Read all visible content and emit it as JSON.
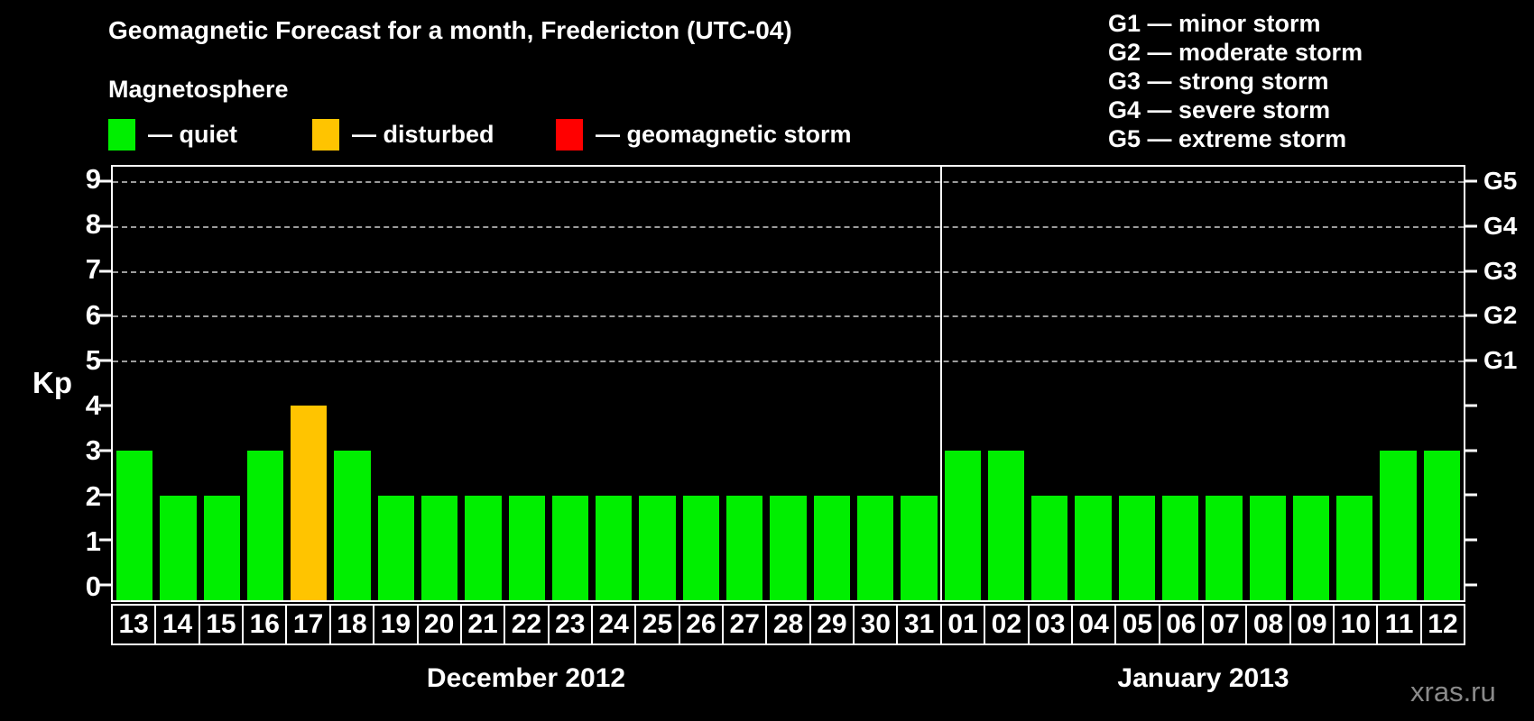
{
  "page": {
    "title": "Geomagnetic Forecast for a month, Fredericton (UTC-04)",
    "watermark": "xras.ru"
  },
  "legend": {
    "heading": "Magnetosphere",
    "items": [
      {
        "key": "quiet",
        "label": "— quiet",
        "color": "#00ef00"
      },
      {
        "key": "disturbed",
        "label": "— disturbed",
        "color": "#ffc400"
      },
      {
        "key": "storm",
        "label": "— geomagnetic storm",
        "color": "#ff0000"
      }
    ]
  },
  "g_legend": [
    "G1 — minor storm",
    "G2 — moderate storm",
    "G3 — strong storm",
    "G4 — severe storm",
    "G5 — extreme storm"
  ],
  "chart_data": {
    "type": "bar",
    "title": "Geomagnetic Forecast for a month, Fredericton (UTC-04)",
    "xlabel": "",
    "ylabel": "Kp",
    "ylim": [
      0,
      9
    ],
    "yticks": [
      0,
      1,
      2,
      3,
      4,
      5,
      6,
      7,
      8,
      9
    ],
    "gridlines_at": [
      5,
      6,
      7,
      8,
      9
    ],
    "grid": "dashed horizontal at storm levels only",
    "legend_position": "top-left",
    "right_axis_labels": [
      {
        "label": "G1",
        "kp": 5
      },
      {
        "label": "G2",
        "kp": 6
      },
      {
        "label": "G3",
        "kp": 7
      },
      {
        "label": "G4",
        "kp": 8
      },
      {
        "label": "G5",
        "kp": 9
      }
    ],
    "status_colors": {
      "quiet": "#00ef00",
      "disturbed": "#ffc400",
      "storm": "#ff0000"
    },
    "months": [
      {
        "label": "December 2012",
        "days": [
          {
            "day": "13",
            "kp": 3,
            "status": "quiet"
          },
          {
            "day": "14",
            "kp": 2,
            "status": "quiet"
          },
          {
            "day": "15",
            "kp": 2,
            "status": "quiet"
          },
          {
            "day": "16",
            "kp": 3,
            "status": "quiet"
          },
          {
            "day": "17",
            "kp": 4,
            "status": "disturbed"
          },
          {
            "day": "18",
            "kp": 3,
            "status": "quiet"
          },
          {
            "day": "19",
            "kp": 2,
            "status": "quiet"
          },
          {
            "day": "20",
            "kp": 2,
            "status": "quiet"
          },
          {
            "day": "21",
            "kp": 2,
            "status": "quiet"
          },
          {
            "day": "22",
            "kp": 2,
            "status": "quiet"
          },
          {
            "day": "23",
            "kp": 2,
            "status": "quiet"
          },
          {
            "day": "24",
            "kp": 2,
            "status": "quiet"
          },
          {
            "day": "25",
            "kp": 2,
            "status": "quiet"
          },
          {
            "day": "26",
            "kp": 2,
            "status": "quiet"
          },
          {
            "day": "27",
            "kp": 2,
            "status": "quiet"
          },
          {
            "day": "28",
            "kp": 2,
            "status": "quiet"
          },
          {
            "day": "29",
            "kp": 2,
            "status": "quiet"
          },
          {
            "day": "30",
            "kp": 2,
            "status": "quiet"
          },
          {
            "day": "31",
            "kp": 2,
            "status": "quiet"
          }
        ]
      },
      {
        "label": "January 2013",
        "days": [
          {
            "day": "01",
            "kp": 3,
            "status": "quiet"
          },
          {
            "day": "02",
            "kp": 3,
            "status": "quiet"
          },
          {
            "day": "03",
            "kp": 2,
            "status": "quiet"
          },
          {
            "day": "04",
            "kp": 2,
            "status": "quiet"
          },
          {
            "day": "05",
            "kp": 2,
            "status": "quiet"
          },
          {
            "day": "06",
            "kp": 2,
            "status": "quiet"
          },
          {
            "day": "07",
            "kp": 2,
            "status": "quiet"
          },
          {
            "day": "08",
            "kp": 2,
            "status": "quiet"
          },
          {
            "day": "09",
            "kp": 2,
            "status": "quiet"
          },
          {
            "day": "10",
            "kp": 2,
            "status": "quiet"
          },
          {
            "day": "11",
            "kp": 3,
            "status": "quiet"
          },
          {
            "day": "12",
            "kp": 3,
            "status": "quiet"
          }
        ]
      }
    ]
  }
}
